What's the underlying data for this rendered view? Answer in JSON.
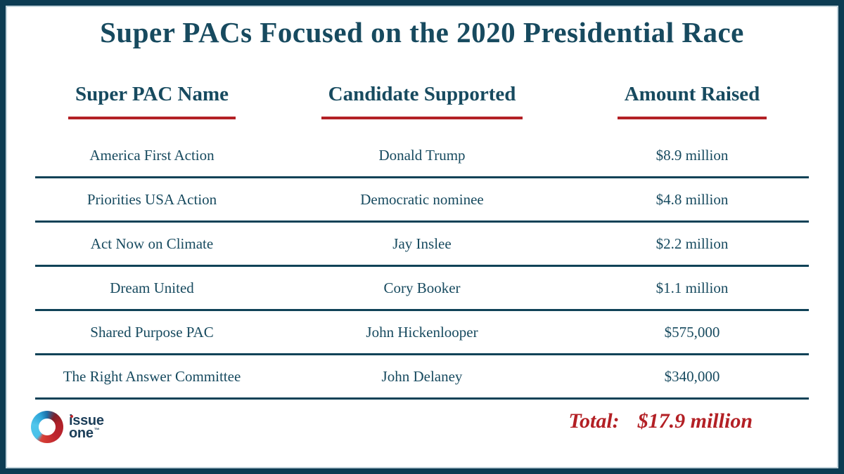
{
  "chart_data": {
    "type": "table",
    "title": "Super PACs Focused on the 2020 Presidential Race",
    "columns": [
      "Super PAC Name",
      "Candidate Supported",
      "Amount Raised"
    ],
    "rows": [
      {
        "pac": "America First Action",
        "candidate": "Donald Trump",
        "amount": "$8.9 million"
      },
      {
        "pac": "Priorities USA Action",
        "candidate": "Democratic nominee",
        "amount": "$4.8 million"
      },
      {
        "pac": "Act Now on Climate",
        "candidate": "Jay Inslee",
        "amount": "$2.2 million"
      },
      {
        "pac": "Dream United",
        "candidate": "Cory Booker",
        "amount": "$1.1 million"
      },
      {
        "pac": "Shared Purpose PAC",
        "candidate": "John Hickenlooper",
        "amount": "$575,000"
      },
      {
        "pac": "The Right Answer Committee",
        "candidate": "John Delaney",
        "amount": "$340,000"
      }
    ],
    "amounts_usd": [
      8900000,
      4800000,
      2200000,
      1100000,
      575000,
      340000
    ],
    "total_label": "Total:",
    "total_value": "$17.9 million"
  },
  "logo": {
    "icon": "issue-one-ring-icon",
    "line1": "issue",
    "line2": "one",
    "trademark": "™"
  },
  "colors": {
    "text_teal": "#174a5f",
    "accent_red": "#b32025",
    "border_teal": "#0d3c53",
    "divider_teal": "#0f4257",
    "logo_navy": "#1c3e59",
    "logo_cyan": "#3ab5e2",
    "logo_red": "#c1272d",
    "page_bg": "#ffffff"
  }
}
